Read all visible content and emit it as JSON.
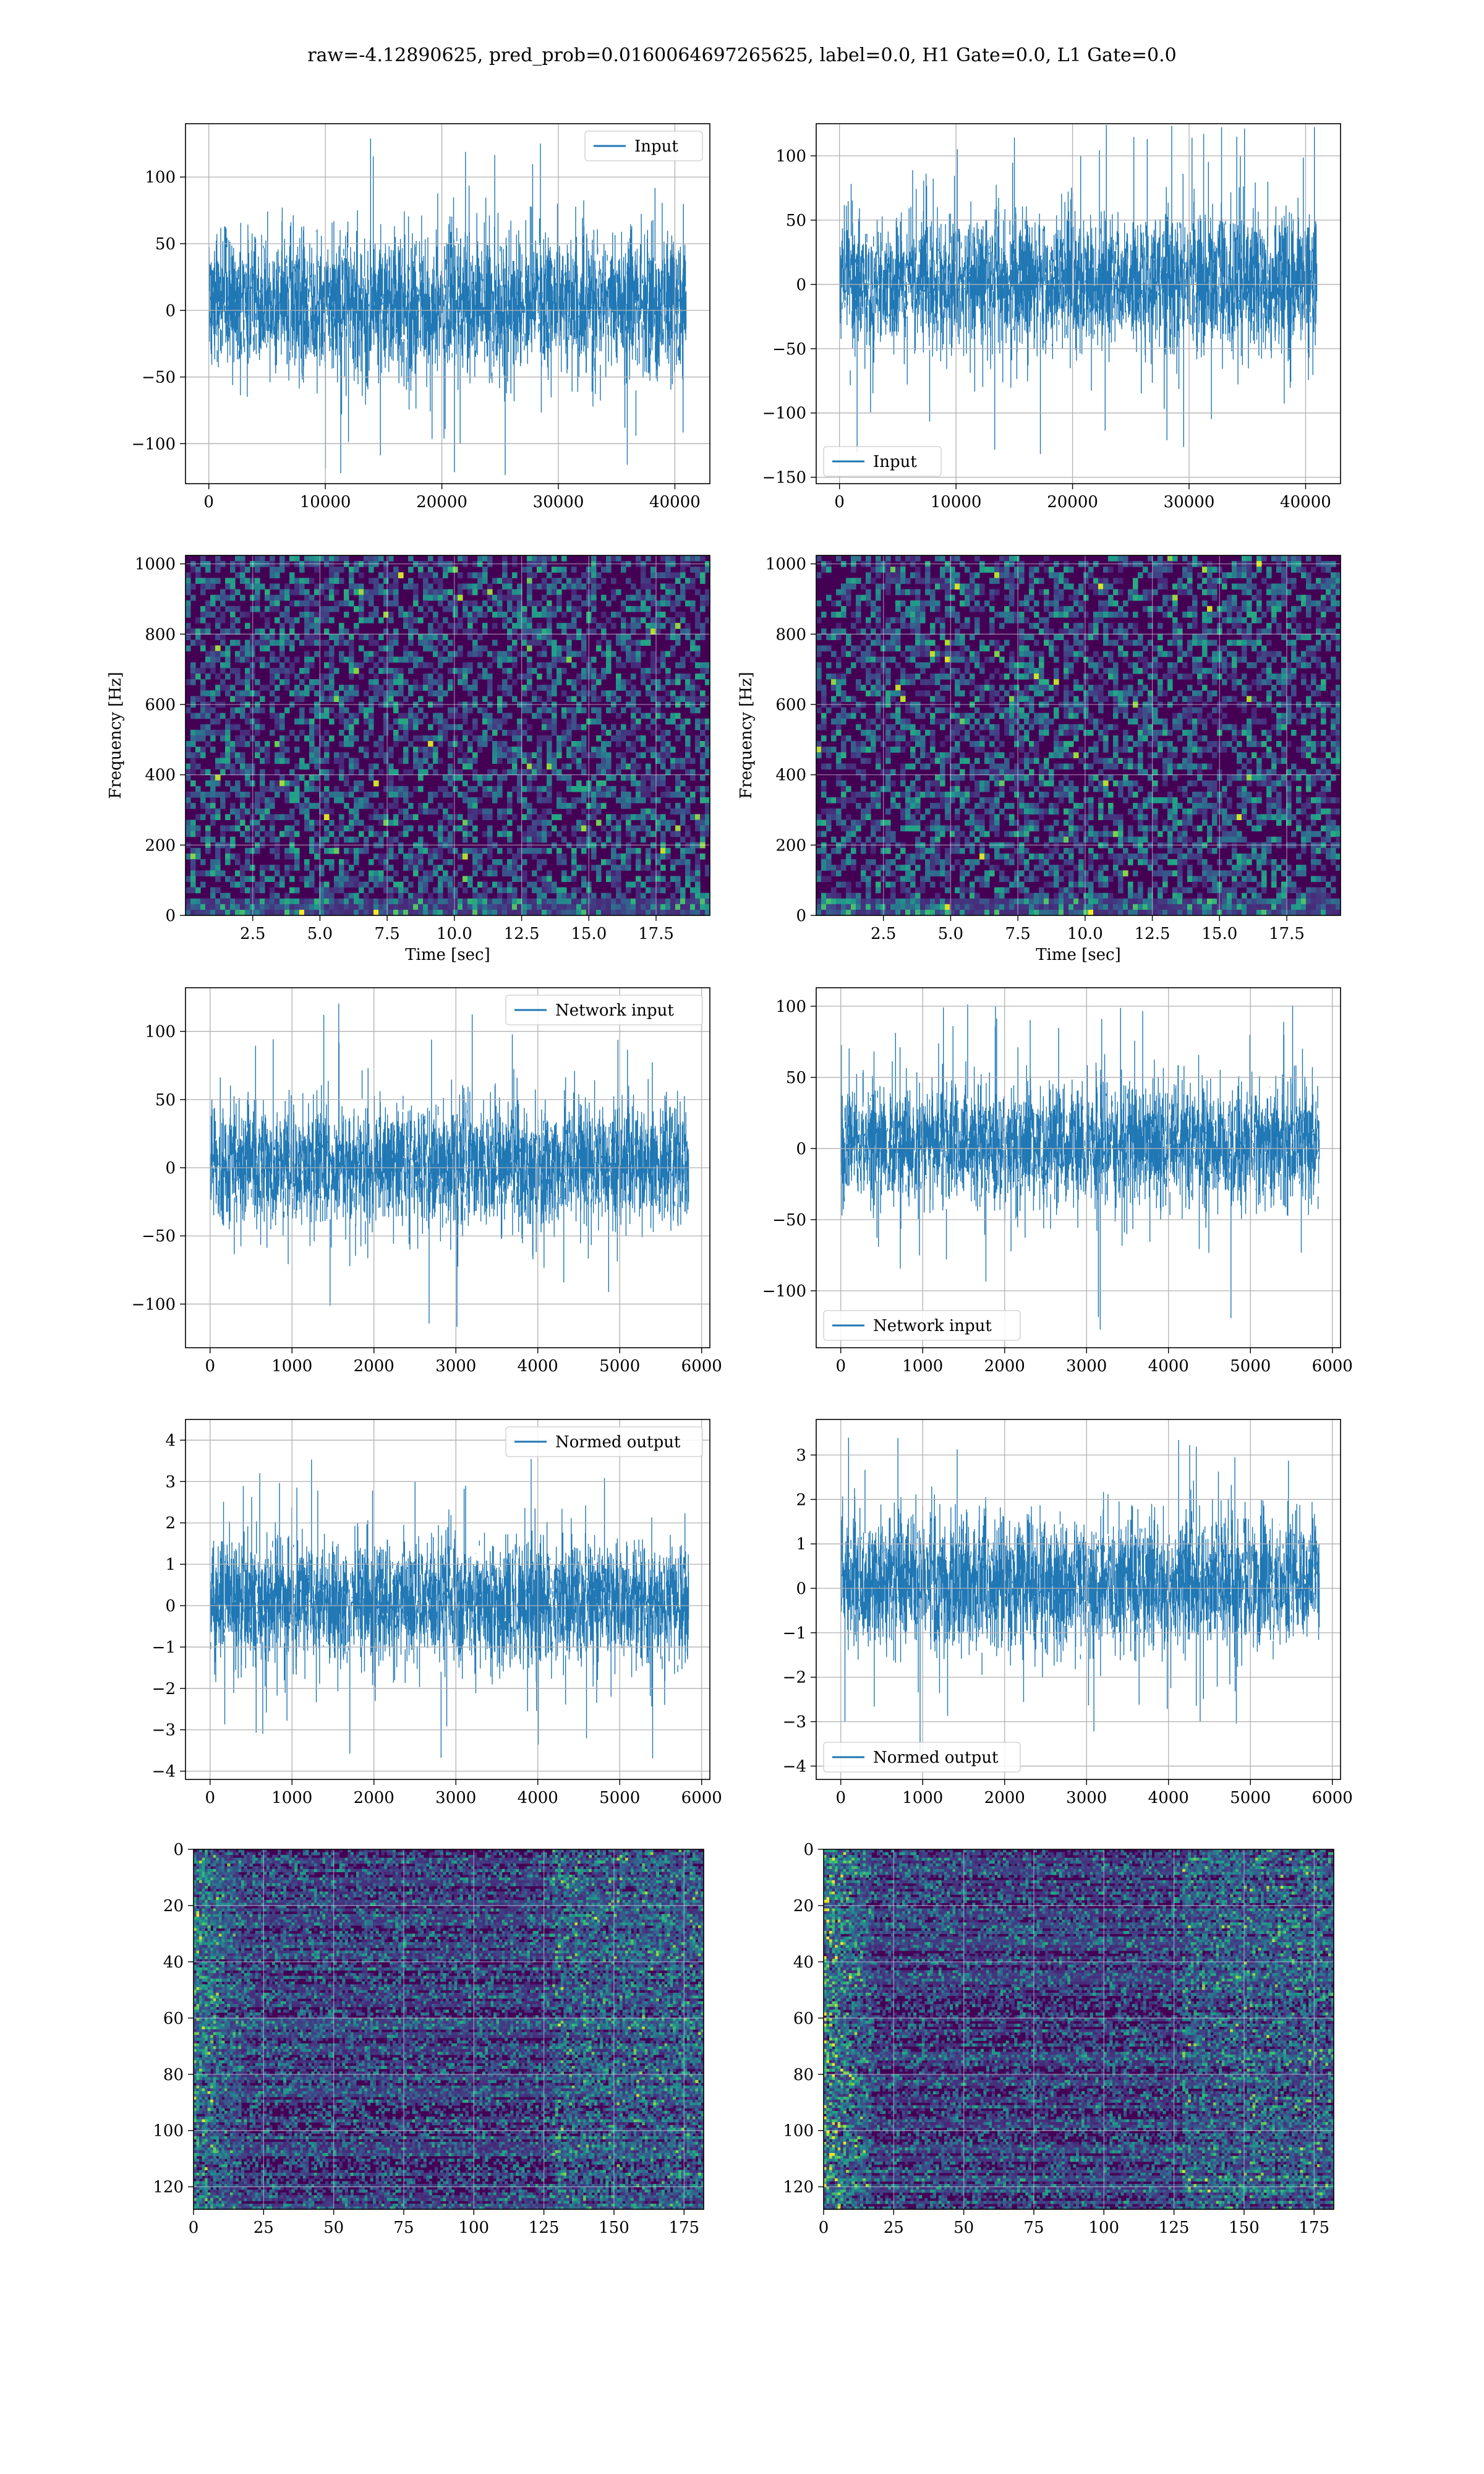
{
  "figure": {
    "title": "raw=-4.12890625, pred_prob=0.0160064697265625, label=0.0, H1 Gate=0.0, L1 Gate=0.0",
    "colors": {
      "series": "#1f77b4",
      "grid": "#b0b0b0",
      "viridis_dark": "#440154",
      "viridis_bright": "#fde725"
    }
  },
  "chart_data": [
    {
      "id": "r1c1",
      "type": "line",
      "title": "",
      "xlabel": "",
      "ylabel": "",
      "xlim": [
        -2000,
        43000
      ],
      "ylim": [
        -130,
        140
      ],
      "xticks": [
        0,
        10000,
        20000,
        30000,
        40000
      ],
      "yticks": [
        -100,
        -50,
        0,
        50,
        100
      ],
      "legend": {
        "label": "Input",
        "loc": "upper right"
      },
      "grid": true,
      "series": [
        {
          "x_range": [
            0,
            40960
          ],
          "samples": 40960,
          "typical_range": [
            -60,
            70
          ],
          "peak_max": 130,
          "peak_min": -125
        }
      ]
    },
    {
      "id": "r1c2",
      "type": "line",
      "title": "",
      "xlabel": "",
      "ylabel": "",
      "xlim": [
        -2000,
        43000
      ],
      "ylim": [
        -155,
        125
      ],
      "xticks": [
        0,
        10000,
        20000,
        30000,
        40000
      ],
      "yticks": [
        -150,
        -100,
        -50,
        0,
        50,
        100
      ],
      "legend": {
        "label": "Input",
        "loc": "lower left"
      },
      "grid": true,
      "series": [
        {
          "x_range": [
            0,
            40960
          ],
          "samples": 40960,
          "typical_range": [
            -65,
            70
          ],
          "peak_max": 125,
          "peak_min": -145
        }
      ]
    },
    {
      "id": "r2c1",
      "type": "heatmap",
      "title": "",
      "xlabel": "Time [sec]",
      "ylabel": "Frequency [Hz]",
      "xlim": [
        0,
        19.5
      ],
      "ylim": [
        0,
        1024
      ],
      "xticks": [
        2.5,
        5.0,
        7.5,
        10.0,
        12.5,
        15.0,
        17.5
      ],
      "xticklabels": [
        "2.5",
        "5.0",
        "7.5",
        "10.0",
        "12.5",
        "15.0",
        "17.5"
      ],
      "yticks": [
        0,
        200,
        400,
        600,
        800,
        1000
      ],
      "colormap": "viridis",
      "grid": true
    },
    {
      "id": "r2c2",
      "type": "heatmap",
      "title": "",
      "xlabel": "Time [sec]",
      "ylabel": "Frequency [Hz]",
      "xlim": [
        0,
        19.5
      ],
      "ylim": [
        0,
        1024
      ],
      "xticks": [
        2.5,
        5.0,
        7.5,
        10.0,
        12.5,
        15.0,
        17.5
      ],
      "xticklabels": [
        "2.5",
        "5.0",
        "7.5",
        "10.0",
        "12.5",
        "15.0",
        "17.5"
      ],
      "yticks": [
        0,
        200,
        400,
        600,
        800,
        1000
      ],
      "colormap": "viridis",
      "grid": true
    },
    {
      "id": "r3c1",
      "type": "line",
      "title": "",
      "xlabel": "",
      "ylabel": "",
      "xlim": [
        -300,
        6100
      ],
      "ylim": [
        -132,
        132
      ],
      "xticks": [
        0,
        1000,
        2000,
        3000,
        4000,
        5000,
        6000
      ],
      "yticks": [
        -100,
        -50,
        0,
        50,
        100
      ],
      "legend": {
        "label": "Network input",
        "loc": "upper right"
      },
      "grid": true,
      "series": [
        {
          "x_range": [
            0,
            5840
          ],
          "samples": 5840,
          "typical_range": [
            -55,
            60
          ],
          "peak_max": 122,
          "peak_min": -120
        }
      ]
    },
    {
      "id": "r3c2",
      "type": "line",
      "title": "",
      "xlabel": "",
      "ylabel": "",
      "xlim": [
        -300,
        6100
      ],
      "ylim": [
        -140,
        113
      ],
      "xticks": [
        0,
        1000,
        2000,
        3000,
        4000,
        5000,
        6000
      ],
      "yticks": [
        -100,
        -50,
        0,
        50,
        100
      ],
      "legend": {
        "label": "Network input",
        "loc": "lower left"
      },
      "grid": true,
      "series": [
        {
          "x_range": [
            0,
            5840
          ],
          "samples": 5840,
          "typical_range": [
            -50,
            55
          ],
          "peak_max": 103,
          "peak_min": -130
        }
      ]
    },
    {
      "id": "r4c1",
      "type": "line",
      "title": "",
      "xlabel": "",
      "ylabel": "",
      "xlim": [
        -300,
        6100
      ],
      "ylim": [
        -4.2,
        4.5
      ],
      "xticks": [
        0,
        1000,
        2000,
        3000,
        4000,
        5000,
        6000
      ],
      "yticks": [
        -4,
        -3,
        -2,
        -1,
        0,
        1,
        2,
        3,
        4
      ],
      "legend": {
        "label": "Normed output",
        "loc": "upper right"
      },
      "grid": true,
      "series": [
        {
          "x_range": [
            0,
            5840
          ],
          "samples": 5840,
          "typical_range": [
            -1.8,
            2.0
          ],
          "peak_max": 3.6,
          "peak_min": -3.8
        }
      ]
    },
    {
      "id": "r4c2",
      "type": "line",
      "title": "",
      "xlabel": "",
      "ylabel": "",
      "xlim": [
        -300,
        6100
      ],
      "ylim": [
        -4.3,
        3.8
      ],
      "xticks": [
        0,
        1000,
        2000,
        3000,
        4000,
        5000,
        6000
      ],
      "yticks": [
        -4,
        -3,
        -2,
        -1,
        0,
        1,
        2,
        3
      ],
      "legend": {
        "label": "Normed output",
        "loc": "lower left"
      },
      "grid": true,
      "series": [
        {
          "x_range": [
            0,
            5840
          ],
          "samples": 5840,
          "typical_range": [
            -1.7,
            2.0
          ],
          "peak_max": 3.4,
          "peak_min": -3.9
        }
      ]
    },
    {
      "id": "r5c1",
      "type": "heatmap",
      "title": "",
      "xlabel": "",
      "ylabel": "",
      "xlim": [
        0,
        182
      ],
      "ylim": [
        128,
        0
      ],
      "y_inverted": true,
      "xticks": [
        0,
        25,
        50,
        75,
        100,
        125,
        150,
        175
      ],
      "yticks": [
        0,
        20,
        40,
        60,
        80,
        100,
        120
      ],
      "colormap": "viridis",
      "grid": true
    },
    {
      "id": "r5c2",
      "type": "heatmap",
      "title": "",
      "xlabel": "",
      "ylabel": "",
      "xlim": [
        0,
        182
      ],
      "ylim": [
        128,
        0
      ],
      "y_inverted": true,
      "xticks": [
        0,
        25,
        50,
        75,
        100,
        125,
        150,
        175
      ],
      "yticks": [
        0,
        20,
        40,
        60,
        80,
        100,
        120
      ],
      "colormap": "viridis",
      "grid": true
    }
  ]
}
